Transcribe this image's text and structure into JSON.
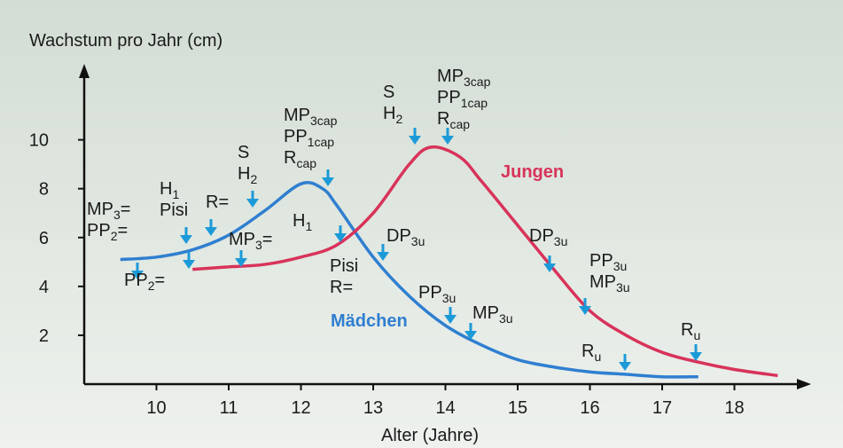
{
  "chart_data": {
    "type": "line",
    "title": "Wachstum pro Jahr (cm)",
    "x_label": "Alter (Jahre)",
    "xlim": [
      9,
      19
    ],
    "xticks": [
      10,
      11,
      12,
      13,
      14,
      15,
      16,
      17,
      18
    ],
    "ylim": [
      0,
      13
    ],
    "yticks": [
      2,
      4,
      6,
      8,
      10
    ],
    "series": [
      {
        "name": "Mädchen",
        "color": "#2f7fd0",
        "x": [
          9.5,
          10,
          10.5,
          11,
          11.5,
          12,
          12.3,
          12.5,
          13,
          13.5,
          14,
          14.5,
          15,
          15.5,
          16,
          16.5,
          17,
          17.5
        ],
        "values": [
          5.1,
          5.2,
          5.5,
          6.1,
          7.1,
          8.2,
          8.0,
          7.3,
          5.2,
          3.6,
          2.4,
          1.6,
          1.0,
          0.7,
          0.5,
          0.4,
          0.3,
          0.3
        ]
      },
      {
        "name": "Jungen",
        "color": "#d8335a",
        "x": [
          10.5,
          11,
          11.5,
          12,
          12.5,
          13,
          13.5,
          13.8,
          14.2,
          14.5,
          15,
          15.5,
          16,
          16.5,
          17,
          17.5,
          18,
          18.6
        ],
        "values": [
          4.7,
          4.8,
          4.9,
          5.2,
          5.7,
          7.0,
          9.0,
          9.7,
          9.3,
          8.3,
          6.5,
          4.7,
          3.0,
          2.0,
          1.3,
          0.9,
          0.6,
          0.35
        ]
      }
    ],
    "annotations": [
      {
        "lines": [
          {
            "base": "MP",
            "sub": "3",
            "tail": "="
          },
          {
            "base": "PP",
            "sub": "2",
            "tail": "="
          }
        ]
      },
      {
        "lines": [
          {
            "base": "H",
            "sub": "1"
          },
          {
            "base": "Pisi"
          }
        ]
      },
      {
        "lines": [
          {
            "base": "R="
          }
        ]
      },
      {
        "lines": [
          {
            "base": "S"
          },
          {
            "base": "H",
            "sub": "2"
          }
        ]
      },
      {
        "lines": [
          {
            "base": "MP",
            "sub": "3cap"
          },
          {
            "base": "PP",
            "sub": "1cap"
          },
          {
            "base": "R",
            "sub": "cap"
          }
        ]
      },
      {
        "lines": [
          {
            "base": "PP",
            "sub": "2",
            "tail": "="
          }
        ]
      },
      {
        "lines": [
          {
            "base": "MP",
            "sub": "3",
            "tail": "="
          }
        ]
      },
      {
        "lines": [
          {
            "base": "H",
            "sub": "1"
          }
        ]
      },
      {
        "lines": [
          {
            "base": "Pisi"
          },
          {
            "base": "R="
          }
        ]
      },
      {
        "lines": [
          {
            "base": "DP",
            "sub": "3u"
          }
        ]
      },
      {
        "lines": [
          {
            "base": "S"
          },
          {
            "base": "H",
            "sub": "2"
          }
        ]
      },
      {
        "lines": [
          {
            "base": "MP",
            "sub": "3cap"
          },
          {
            "base": "PP",
            "sub": "1cap"
          },
          {
            "base": "R",
            "sub": "cap"
          }
        ]
      },
      {
        "lines": [
          {
            "base": "PP",
            "sub": "3u"
          }
        ]
      },
      {
        "lines": [
          {
            "base": "MP",
            "sub": "3u"
          }
        ]
      },
      {
        "lines": [
          {
            "base": "DP",
            "sub": "3u"
          }
        ]
      },
      {
        "lines": [
          {
            "base": "PP",
            "sub": "3u"
          },
          {
            "base": "MP",
            "sub": "3u"
          }
        ]
      },
      {
        "lines": [
          {
            "base": "R",
            "sub": "u"
          }
        ]
      },
      {
        "lines": [
          {
            "base": "R",
            "sub": "u"
          }
        ]
      }
    ]
  }
}
